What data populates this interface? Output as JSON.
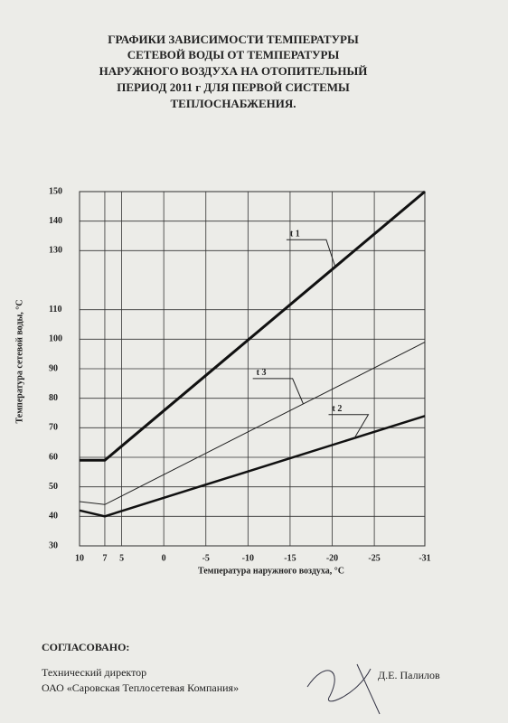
{
  "document": {
    "title": [
      "ГРАФИКИ ЗАВИСИМОСТИ ТЕМПЕРАТУРЫ",
      "СЕТЕВОЙ ВОДЫ ОТ ТЕМПЕРАТУРЫ",
      "НАРУЖНОГО ВОЗДУХА НА ОТОПИТЕЛЬНЫЙ",
      "ПЕРИОД  2011 г ДЛЯ ПЕРВОЙ СИСТЕМЫ",
      "ТЕПЛОСНАБЖЕНИЯ."
    ],
    "approval": "СОГЛАСОВАНО:",
    "position": "Технический директор",
    "company": "ОАО «Саровская Теплосетевая Компания»",
    "signatory": "Д.Е. Палилов"
  },
  "chart_data": {
    "type": "line",
    "x_label": "Температура  наружного воздуха, °С",
    "y_label": "Температура сетевой воды, °С",
    "x": [
      10,
      7,
      -31
    ],
    "series": [
      {
        "name": "t 1",
        "color": "#111111",
        "values": [
          59,
          59,
          150
        ]
      },
      {
        "name": "t 2",
        "color": "#111111",
        "values": [
          42,
          40,
          74
        ]
      },
      {
        "name": "t 3",
        "color": "#222222",
        "values": [
          45,
          44,
          99
        ]
      }
    ],
    "xlim": [
      10,
      -31
    ],
    "xticks": [
      10,
      7,
      5,
      0,
      -5,
      -10,
      -15,
      -20,
      -25,
      -31
    ],
    "ylim": [
      30,
      150
    ],
    "yticks": [
      30,
      40,
      50,
      60,
      70,
      80,
      90,
      100,
      110,
      130,
      140,
      150
    ],
    "grid": true
  }
}
